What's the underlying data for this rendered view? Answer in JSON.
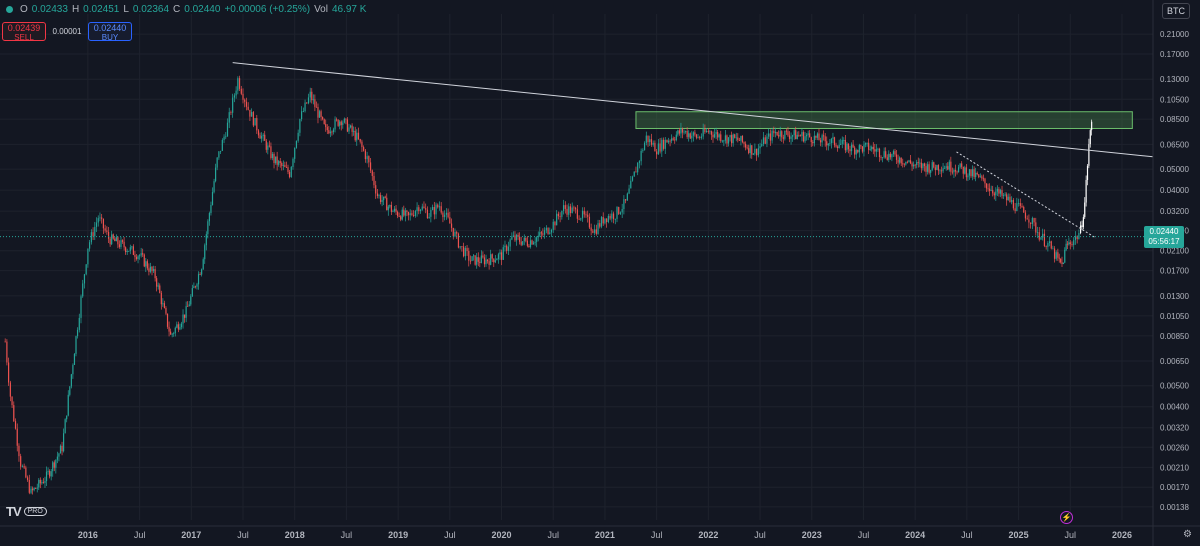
{
  "ohlc": {
    "open_label": "O",
    "open": "0.02433",
    "high_label": "H",
    "high": "0.02451",
    "low_label": "L",
    "low": "0.02364",
    "close_label": "C",
    "close": "0.02440",
    "change": "+0.00006 (+0.25%)",
    "vol_label": "Vol",
    "vol": "46.97 K"
  },
  "trade": {
    "sell_price": "0.02439",
    "sell_label": "SELL",
    "spread": "0.00001",
    "buy_price": "0.02440",
    "buy_label": "BUY"
  },
  "currency_badge": "BTC",
  "last_price": {
    "value": "0.02440",
    "countdown": "05:56:17"
  },
  "logo": {
    "pro": "PRO"
  },
  "colors": {
    "up": "#26a69a",
    "down": "#ef5350",
    "background": "#131722",
    "grid": "#1e222d",
    "axis_text": "#b2b5be",
    "zone": "#3f7a3f"
  },
  "chart_data": {
    "type": "candlestick",
    "price_unit": "BTC",
    "y_scale": "log",
    "ylim": [
      0.0012,
      0.26
    ],
    "y_ticks": [
      "0.21000",
      "0.17000",
      "0.13000",
      "0.10500",
      "0.08500",
      "0.06500",
      "0.05000",
      "0.04000",
      "0.03200",
      "0.02600",
      "0.02100",
      "0.01700",
      "0.01300",
      "0.01050",
      "0.00850",
      "0.00650",
      "0.00500",
      "0.00400",
      "0.00320",
      "0.00260",
      "0.00210",
      "0.00170",
      "0.00138"
    ],
    "x_ticks": [
      "2016",
      "Jul",
      "2017",
      "Jul",
      "2018",
      "Jul",
      "2019",
      "Jul",
      "2020",
      "Jul",
      "2021",
      "Jul",
      "2022",
      "Jul",
      "2023",
      "Jul",
      "2024",
      "Jul",
      "2025",
      "Jul",
      "2026"
    ],
    "x_tick_dates": [
      2016.0,
      2016.5,
      2017.0,
      2017.5,
      2018.0,
      2018.5,
      2019.0,
      2019.5,
      2020.0,
      2020.5,
      2021.0,
      2021.5,
      2022.0,
      2022.5,
      2023.0,
      2023.5,
      2024.0,
      2024.5,
      2025.0,
      2025.5,
      2026.0
    ],
    "xlim": [
      2015.15,
      2026.3
    ],
    "series": [
      {
        "values": [
          [
            2015.2,
            0.008
          ],
          [
            2015.25,
            0.0045
          ],
          [
            2015.35,
            0.0022
          ],
          [
            2015.45,
            0.0016
          ],
          [
            2015.6,
            0.0019
          ],
          [
            2015.75,
            0.0026
          ],
          [
            2015.9,
            0.0095
          ],
          [
            2016.0,
            0.022
          ],
          [
            2016.1,
            0.03
          ],
          [
            2016.2,
            0.024
          ],
          [
            2016.35,
            0.022
          ],
          [
            2016.5,
            0.02
          ],
          [
            2016.65,
            0.016
          ],
          [
            2016.8,
            0.0085
          ],
          [
            2016.95,
            0.011
          ],
          [
            2017.1,
            0.018
          ],
          [
            2017.25,
            0.055
          ],
          [
            2017.35,
            0.08
          ],
          [
            2017.45,
            0.13
          ],
          [
            2017.55,
            0.095
          ],
          [
            2017.65,
            0.075
          ],
          [
            2017.8,
            0.055
          ],
          [
            2017.95,
            0.048
          ],
          [
            2018.05,
            0.085
          ],
          [
            2018.15,
            0.11
          ],
          [
            2018.3,
            0.075
          ],
          [
            2018.45,
            0.085
          ],
          [
            2018.6,
            0.07
          ],
          [
            2018.7,
            0.056
          ],
          [
            2018.8,
            0.038
          ],
          [
            2018.95,
            0.032
          ],
          [
            2019.1,
            0.03
          ],
          [
            2019.2,
            0.034
          ],
          [
            2019.3,
            0.031
          ],
          [
            2019.4,
            0.034
          ],
          [
            2019.5,
            0.028
          ],
          [
            2019.6,
            0.022
          ],
          [
            2019.7,
            0.019
          ],
          [
            2019.85,
            0.019
          ],
          [
            2020.0,
            0.02
          ],
          [
            2020.1,
            0.024
          ],
          [
            2020.25,
            0.023
          ],
          [
            2020.4,
            0.025
          ],
          [
            2020.5,
            0.028
          ],
          [
            2020.6,
            0.033
          ],
          [
            2020.7,
            0.032
          ],
          [
            2020.8,
            0.03
          ],
          [
            2020.9,
            0.026
          ],
          [
            2021.0,
            0.03
          ],
          [
            2021.1,
            0.031
          ],
          [
            2021.2,
            0.035
          ],
          [
            2021.3,
            0.05
          ],
          [
            2021.4,
            0.07
          ],
          [
            2021.5,
            0.062
          ],
          [
            2021.6,
            0.068
          ],
          [
            2021.75,
            0.075
          ],
          [
            2021.9,
            0.07
          ],
          [
            2022.0,
            0.075
          ],
          [
            2022.15,
            0.07
          ],
          [
            2022.3,
            0.068
          ],
          [
            2022.45,
            0.06
          ],
          [
            2022.55,
            0.068
          ],
          [
            2022.65,
            0.074
          ],
          [
            2022.8,
            0.072
          ],
          [
            2022.95,
            0.071
          ],
          [
            2023.1,
            0.068
          ],
          [
            2023.25,
            0.066
          ],
          [
            2023.4,
            0.062
          ],
          [
            2023.55,
            0.063
          ],
          [
            2023.7,
            0.059
          ],
          [
            2023.85,
            0.056
          ],
          [
            2024.0,
            0.052
          ],
          [
            2024.15,
            0.051
          ],
          [
            2024.3,
            0.052
          ],
          [
            2024.45,
            0.05
          ],
          [
            2024.6,
            0.046
          ],
          [
            2024.75,
            0.04
          ],
          [
            2024.9,
            0.036
          ],
          [
            2025.0,
            0.033
          ],
          [
            2025.1,
            0.03
          ],
          [
            2025.2,
            0.025
          ],
          [
            2025.3,
            0.022
          ],
          [
            2025.38,
            0.019
          ],
          [
            2025.42,
            0.018
          ],
          [
            2025.46,
            0.022
          ],
          [
            2025.5,
            0.023
          ],
          [
            2025.55,
            0.024
          ],
          [
            2025.6,
            0.026
          ],
          [
            2025.64,
            0.035
          ],
          [
            2025.68,
            0.065
          ],
          [
            2025.72,
            0.092
          ]
        ]
      }
    ],
    "annotations": {
      "resistance_zone": {
        "y_from": 0.077,
        "y_to": 0.092,
        "x_from": 2021.3,
        "x_to": 2026.1
      },
      "long_trendline": {
        "x1": 2017.4,
        "y1": 0.155,
        "x2": 2026.3,
        "y2": 0.057
      },
      "dotted_trendline": {
        "x1": 2024.4,
        "y1": 0.06,
        "x2": 2025.75,
        "y2": 0.024
      },
      "last_price_line": 0.0244
    }
  }
}
